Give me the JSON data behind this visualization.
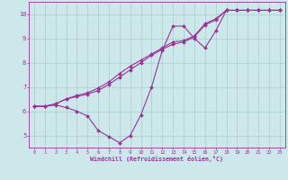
{
  "bg_color": "#cce8ea",
  "line_color": "#993399",
  "grid_color": "#aacccc",
  "xlabel": "Windchill (Refroidissement éolien,°C)",
  "xlim": [
    -0.5,
    23.5
  ],
  "ylim": [
    4.5,
    10.5
  ],
  "xticks": [
    0,
    1,
    2,
    3,
    4,
    5,
    6,
    7,
    8,
    9,
    10,
    11,
    12,
    13,
    14,
    15,
    16,
    17,
    18,
    19,
    20,
    21,
    22,
    23
  ],
  "yticks": [
    5,
    6,
    7,
    8,
    9,
    10
  ],
  "series1_x": [
    0,
    1,
    2,
    3,
    4,
    5,
    6,
    7,
    8,
    9,
    10,
    11,
    12,
    13,
    14,
    15,
    16,
    17,
    18,
    19,
    20,
    21,
    22,
    23
  ],
  "series1_y": [
    6.2,
    6.2,
    6.25,
    6.15,
    6.0,
    5.8,
    5.2,
    4.95,
    4.7,
    5.0,
    5.85,
    7.0,
    8.5,
    9.5,
    9.5,
    9.0,
    8.6,
    9.3,
    10.15,
    10.15,
    10.15,
    10.15,
    10.15,
    10.15
  ],
  "series2_x": [
    0,
    1,
    2,
    3,
    4,
    5,
    6,
    7,
    8,
    9,
    10,
    11,
    12,
    13,
    14,
    15,
    16,
    17,
    18,
    19,
    20,
    21,
    22,
    23
  ],
  "series2_y": [
    6.2,
    6.2,
    6.3,
    6.5,
    6.6,
    6.7,
    6.85,
    7.1,
    7.4,
    7.7,
    8.0,
    8.3,
    8.55,
    8.75,
    8.85,
    9.05,
    9.55,
    9.75,
    10.15,
    10.15,
    10.15,
    10.15,
    10.15,
    10.15
  ],
  "series3_x": [
    0,
    1,
    2,
    3,
    4,
    5,
    6,
    7,
    8,
    9,
    10,
    11,
    12,
    13,
    14,
    15,
    16,
    17,
    18,
    19,
    20,
    21,
    22,
    23
  ],
  "series3_y": [
    6.2,
    6.2,
    6.3,
    6.5,
    6.65,
    6.75,
    6.95,
    7.2,
    7.55,
    7.85,
    8.1,
    8.35,
    8.6,
    8.85,
    8.9,
    9.1,
    9.6,
    9.8,
    10.15,
    10.15,
    10.15,
    10.15,
    10.15,
    10.15
  ]
}
